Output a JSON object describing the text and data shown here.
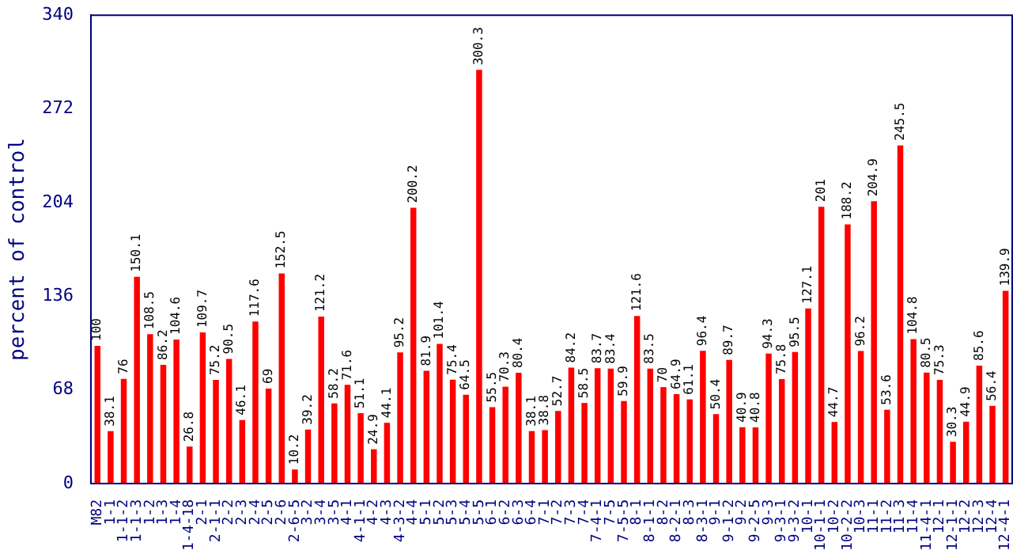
{
  "chart_data": {
    "type": "bar",
    "ylabel": "percent of control",
    "categories": [
      "M82",
      "1-1",
      "1-1-2",
      "1-1-3",
      "1-2",
      "1-3",
      "1-4",
      "1-4-18",
      "2-1",
      "2-1-1",
      "2-2",
      "2-3",
      "2-4",
      "2-5",
      "2-6",
      "2-6-5",
      "3-2",
      "3-4",
      "3-5",
      "4-1",
      "4-1-1",
      "4-2",
      "4-3",
      "4-3-2",
      "4-4",
      "5-1",
      "5-2",
      "5-3",
      "5-4",
      "5-5",
      "6-1",
      "6-2",
      "6-3",
      "6-4",
      "7-1",
      "7-2",
      "7-3",
      "7-4",
      "7-4-1",
      "7-5",
      "7-5-5",
      "8-1",
      "8-1-1",
      "8-2",
      "8-2-1",
      "8-3",
      "8-3-1",
      "9-1",
      "9-1-2",
      "9-2",
      "9-2-5",
      "9-3",
      "9-3-1",
      "9-3-2",
      "10-1",
      "10-1-1",
      "10-2",
      "10-2-2",
      "10-3",
      "11-1",
      "11-2",
      "11-3",
      "11-4",
      "11-4-1",
      "12-1",
      "12-1-1",
      "12-2",
      "12-3",
      "12-4",
      "12-4-1"
    ],
    "values": [
      100,
      38.1,
      76,
      150.1,
      108.5,
      86.2,
      104.6,
      26.8,
      109.7,
      75.2,
      90.5,
      46.1,
      117.6,
      69,
      152.5,
      10.2,
      39.2,
      121.2,
      58.2,
      71.6,
      51.1,
      24.9,
      44.1,
      95.2,
      200.2,
      81.9,
      101.4,
      75.4,
      64.5,
      300.3,
      55.5,
      70.3,
      80.4,
      38.1,
      38.8,
      52.7,
      84.2,
      58.5,
      83.7,
      83.4,
      59.9,
      121.6,
      83.5,
      70,
      64.9,
      61.1,
      96.4,
      50.4,
      89.7,
      40.9,
      40.8,
      94.3,
      75.8,
      95.5,
      127.1,
      201,
      44.7,
      188.2,
      96.2,
      204.9,
      53.6,
      245.5,
      104.8,
      80.5,
      75.3,
      30.3,
      44.9,
      85.6,
      56.4,
      139.9
    ],
    "color": "#ff0000",
    "ylim": [
      0,
      340
    ],
    "yticks": [
      0,
      68,
      136,
      204,
      272,
      340
    ],
    "grid": false,
    "legend": false,
    "data_labels": true
  }
}
